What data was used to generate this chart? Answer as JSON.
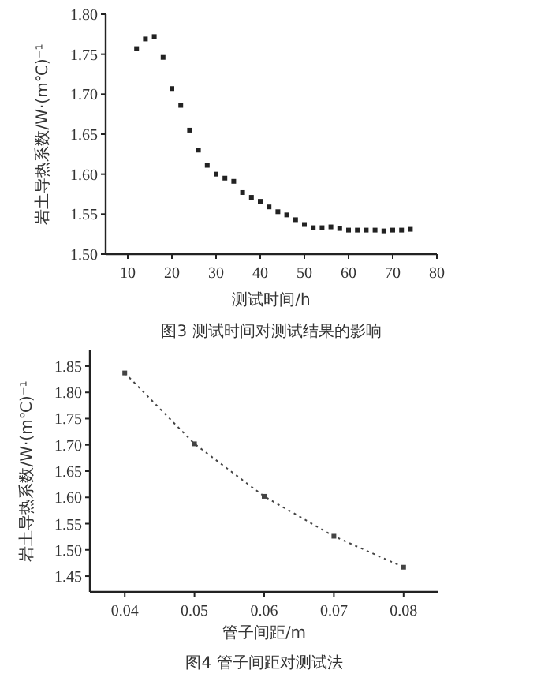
{
  "chart_data": [
    {
      "type": "scatter",
      "title": "图3 测试时间对测试结果的影响",
      "xlabel": "测试时间/h",
      "ylabel": "岩土导热系数/W·(m℃)⁻¹",
      "marker": "square",
      "x": [
        12,
        14,
        16,
        18,
        20,
        22,
        24,
        26,
        28,
        30,
        32,
        34,
        36,
        38,
        40,
        42,
        44,
        46,
        48,
        50,
        52,
        54,
        56,
        58,
        60,
        62,
        64,
        66,
        68,
        70,
        72,
        74
      ],
      "series": [
        {
          "color": "#222222",
          "values": [
            1.757,
            1.769,
            1.772,
            1.746,
            1.707,
            1.686,
            1.655,
            1.63,
            1.611,
            1.6,
            1.595,
            1.591,
            1.577,
            1.571,
            1.566,
            1.559,
            1.553,
            1.549,
            1.543,
            1.537,
            1.533,
            1.533,
            1.534,
            1.532,
            1.53,
            1.53,
            1.53,
            1.53,
            1.529,
            1.53,
            1.53,
            1.531
          ]
        }
      ],
      "xlim": [
        5,
        80
      ],
      "xticks": [
        10,
        20,
        30,
        40,
        50,
        60,
        70,
        80
      ],
      "ylim": [
        1.5,
        1.8
      ],
      "yticks": [
        {
          "value": 1.5,
          "label": "1.50"
        },
        {
          "value": 1.55,
          "label": "1.55"
        },
        {
          "value": 1.6,
          "label": "1.60"
        },
        {
          "value": 1.65,
          "label": "1.65"
        },
        {
          "value": 1.7,
          "label": "1.70"
        },
        {
          "value": 1.75,
          "label": "1.75"
        },
        {
          "value": 1.8,
          "label": "1.80"
        }
      ],
      "grid": false
    },
    {
      "type": "line",
      "title": "图4 管子间距对测试法",
      "xlabel": "管子间距/m",
      "ylabel": "岩土导热系数/W·(m℃)⁻¹",
      "marker": "square",
      "line_style": "dotted",
      "x": [
        0.04,
        0.05,
        0.06,
        0.07,
        0.08
      ],
      "series": [
        {
          "color": "#444444",
          "values": [
            1.837,
            1.702,
            1.602,
            1.526,
            1.467
          ]
        }
      ],
      "xlim": [
        0.035,
        0.085
      ],
      "xticks": [
        0.04,
        0.05,
        0.06,
        0.07,
        0.08
      ],
      "ylim": [
        1.42,
        1.88
      ],
      "yticks": [
        1.45,
        {
          "value": 1.5,
          "label": "1.50"
        },
        1.55,
        {
          "value": 1.6,
          "label": "1.60"
        },
        1.65,
        {
          "value": 1.7,
          "label": "1.70"
        },
        1.75,
        {
          "value": 1.8,
          "label": "1.80"
        },
        1.85
      ],
      "grid": false
    }
  ]
}
